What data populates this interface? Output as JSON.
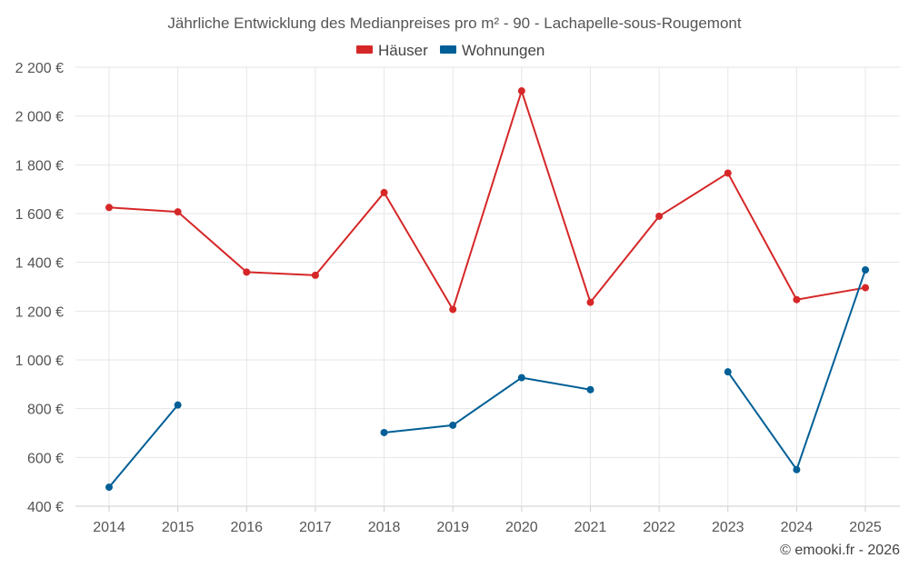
{
  "chart_data": {
    "type": "line",
    "title": "Jährliche Entwicklung des Medianpreises pro m² - 90 - Lachapelle-sous-Rougemont",
    "categories": [
      "2014",
      "2015",
      "2016",
      "2017",
      "2018",
      "2019",
      "2020",
      "2021",
      "2022",
      "2023",
      "2024",
      "2025"
    ],
    "ylim": [
      400,
      2200
    ],
    "yticks": [
      400,
      600,
      800,
      1000,
      1200,
      1400,
      1600,
      1800,
      2000,
      2200
    ],
    "ytick_labels": [
      "400 €",
      "600 €",
      "800 €",
      "1 000 €",
      "1 200 €",
      "1 400 €",
      "1 600 €",
      "1 800 €",
      "2 000 €",
      "2 200 €"
    ],
    "legend_position": "top-center",
    "grid": true,
    "series": [
      {
        "name": "Häuser",
        "color": "#d62728",
        "values": [
          1625,
          1607,
          1360,
          1347,
          1686,
          1207,
          2103,
          1236,
          1589,
          1766,
          1247,
          1296
        ]
      },
      {
        "name": "Wohnungen",
        "color": "#005f96",
        "values": [
          478,
          815,
          null,
          null,
          702,
          732,
          927,
          878,
          null,
          951,
          550,
          1369
        ]
      }
    ]
  },
  "credit": "© emooki.fr - 2026"
}
